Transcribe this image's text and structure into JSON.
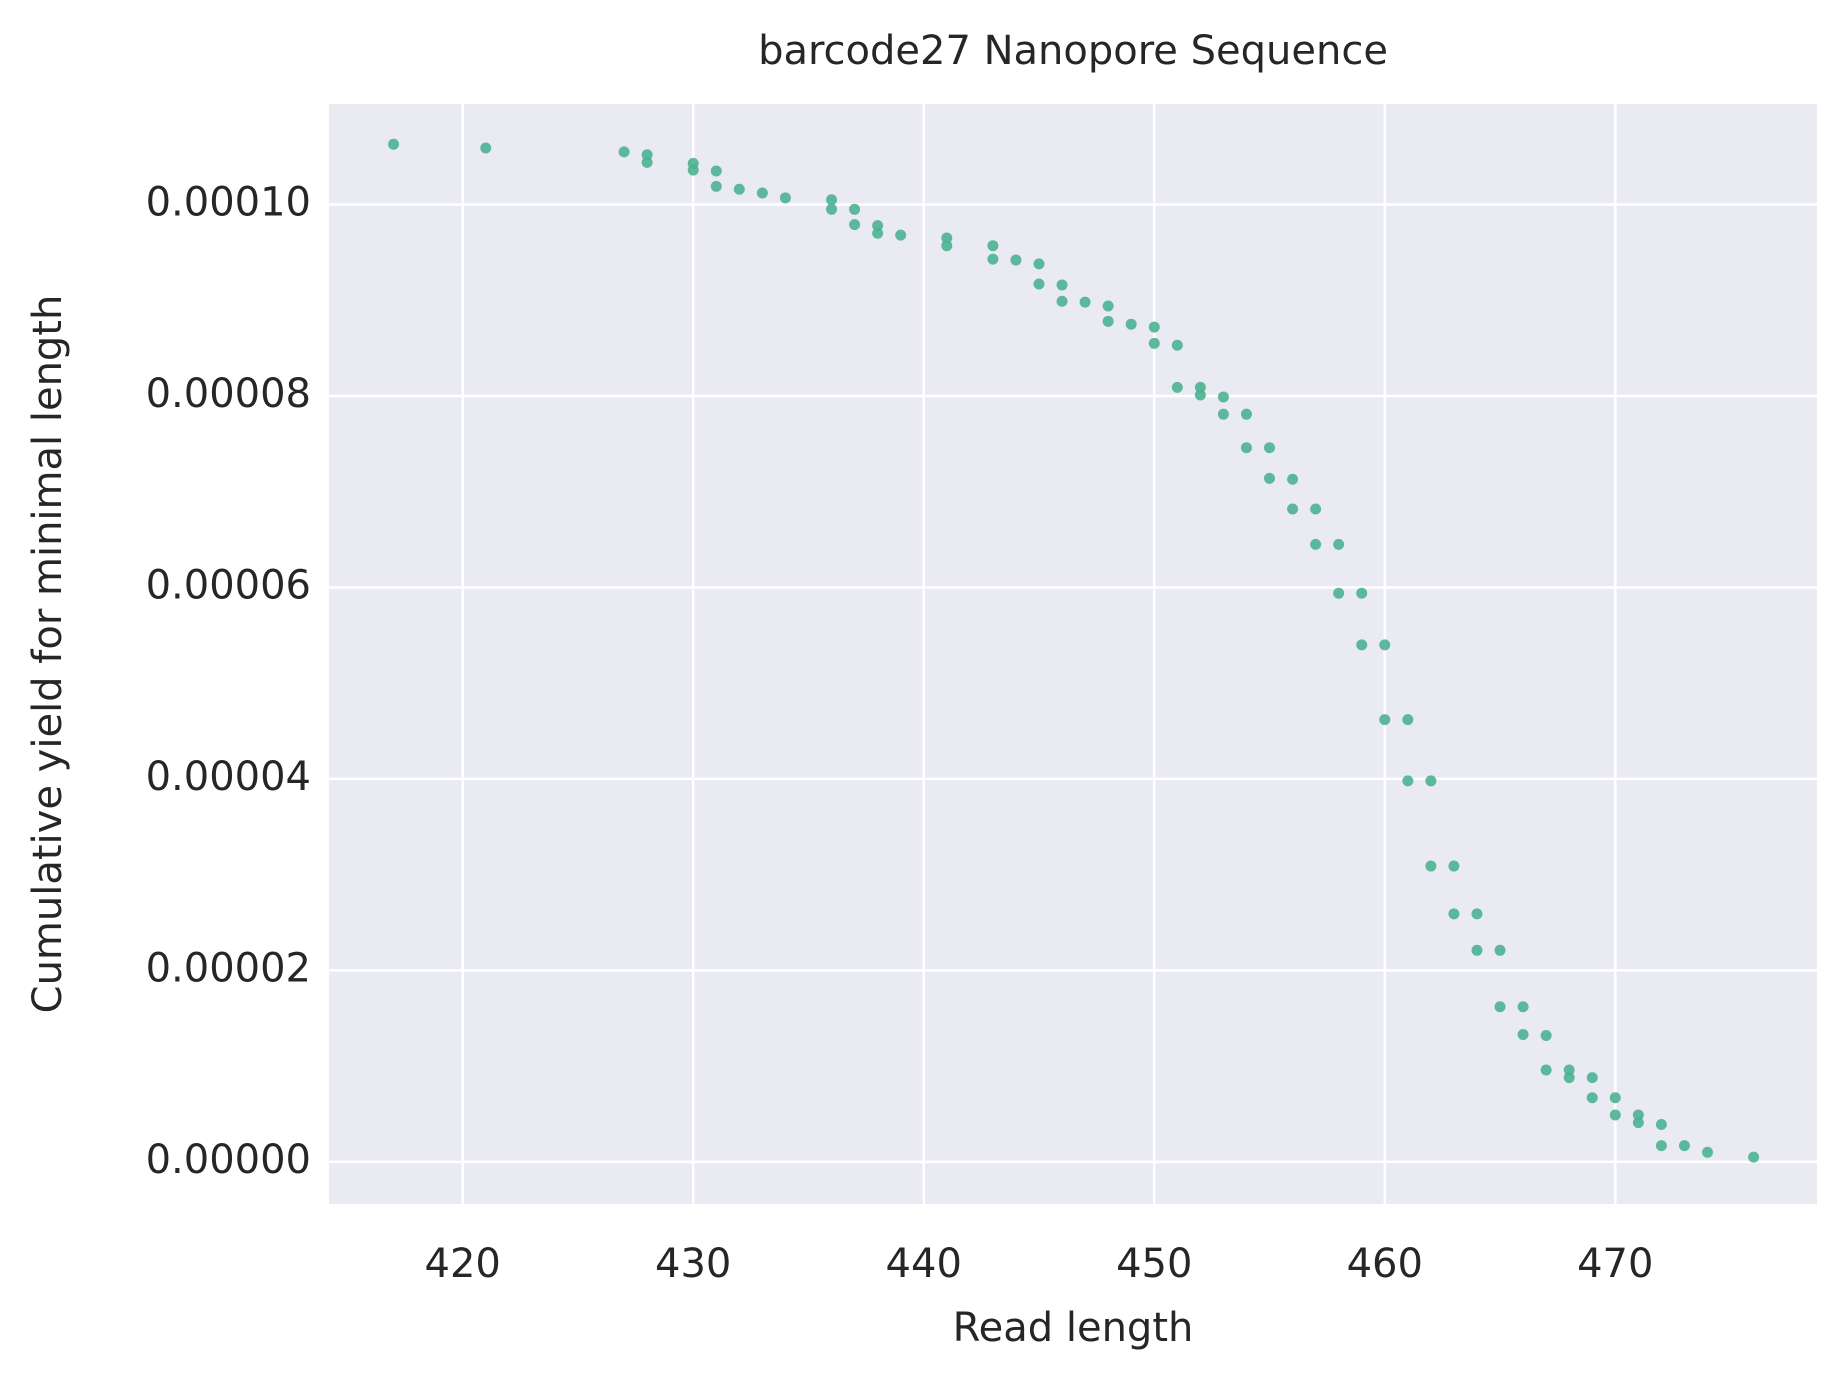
{
  "chart_data": {
    "type": "scatter",
    "title": "barcode27 Nanopore Sequence",
    "x_label": "Read length",
    "y_label": "Cumulative yield for minimal length",
    "color": "#4cb391",
    "grid": true,
    "xlim": [
      414.2,
      478.75
    ],
    "ylim": [
      -4.4e-06,
      0.0001105
    ],
    "xticks": [
      420,
      430,
      440,
      450,
      460,
      470
    ],
    "yticks": [
      {
        "value": 0,
        "label": "0.00000"
      },
      {
        "value": 2e-05,
        "label": "0.00002"
      },
      {
        "value": 4e-05,
        "label": "0.00004"
      },
      {
        "value": 6e-05,
        "label": "0.00006"
      },
      {
        "value": 8e-05,
        "label": "0.00008"
      },
      {
        "value": 0.0001,
        "label": "0.00010"
      }
    ],
    "x": [
      417,
      421,
      427,
      428,
      428,
      430,
      430,
      431,
      431,
      432,
      433,
      434,
      436,
      436,
      437,
      437,
      438,
      438,
      439,
      441,
      441,
      443,
      443,
      444,
      445,
      445,
      446,
      446,
      447,
      448,
      448,
      449,
      450,
      450,
      451,
      451,
      452,
      452,
      453,
      453,
      454,
      454,
      455,
      455,
      456,
      456,
      457,
      457,
      458,
      458,
      459,
      459,
      460,
      460,
      461,
      461,
      462,
      462,
      463,
      463,
      464,
      464,
      465,
      465,
      466,
      466,
      467,
      467,
      468,
      468,
      469,
      469,
      470,
      470,
      471,
      471,
      472,
      472,
      473,
      474,
      476
    ],
    "y": [
      0.0001063,
      0.0001059,
      0.0001055,
      0.0001052,
      0.0001044,
      0.0001043,
      0.0001036,
      0.0001035,
      0.0001019,
      0.0001016,
      0.0001012,
      0.0001007,
      0.0001005,
      9.95e-05,
      9.95e-05,
      9.79e-05,
      9.78e-05,
      9.7e-05,
      9.68e-05,
      9.65e-05,
      9.57e-05,
      9.57e-05,
      9.43e-05,
      9.42e-05,
      9.38e-05,
      9.17e-05,
      9.16e-05,
      8.99e-05,
      8.98e-05,
      8.94e-05,
      8.78e-05,
      8.75e-05,
      8.72e-05,
      8.55e-05,
      8.53e-05,
      8.09e-05,
      8.09e-05,
      8.01e-05,
      7.99e-05,
      7.81e-05,
      7.81e-05,
      7.46e-05,
      7.46e-05,
      7.14e-05,
      7.13e-05,
      6.82e-05,
      6.82e-05,
      6.45e-05,
      6.45e-05,
      5.94e-05,
      5.94e-05,
      5.4e-05,
      5.4e-05,
      4.62e-05,
      4.62e-05,
      3.98e-05,
      3.98e-05,
      3.09e-05,
      3.09e-05,
      2.59e-05,
      2.59e-05,
      2.21e-05,
      2.21e-05,
      1.62e-05,
      1.62e-05,
      1.33e-05,
      1.32e-05,
      9.6e-06,
      9.6e-06,
      8.8e-06,
      8.8e-06,
      6.7e-06,
      6.7e-06,
      4.9e-06,
      4.9e-06,
      4.1e-06,
      3.9e-06,
      1.7e-06,
      1.7e-06,
      1e-06,
      5e-07
    ]
  }
}
